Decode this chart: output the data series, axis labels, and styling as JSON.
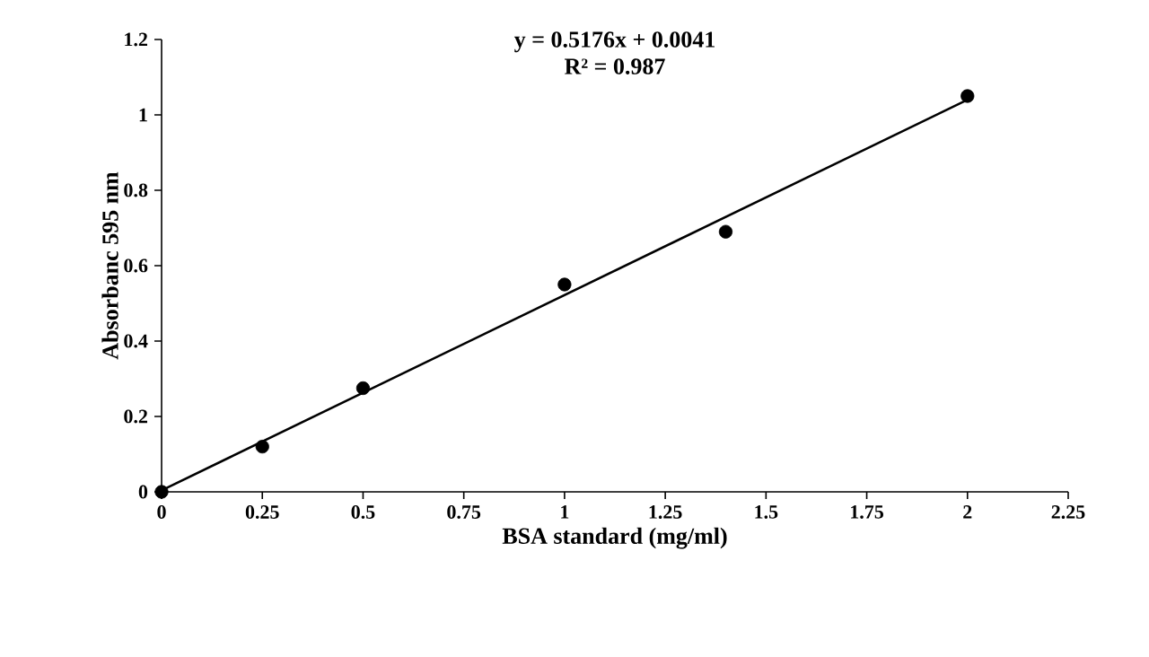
{
  "chart_data": {
    "type": "scatter",
    "xlabel": "BSA standard (mg/ml)",
    "ylabel": "Absorbanc  595 nm",
    "annotations": [
      "y = 0.5176x + 0.0041",
      "R² = 0.987"
    ],
    "series": [
      {
        "type": "scatter",
        "color": "#000000",
        "marker": "circle",
        "x": [
          0,
          0.25,
          0.5,
          1,
          1.4,
          2
        ],
        "values": [
          0,
          0.12,
          0.275,
          0.55,
          0.69,
          1.05
        ]
      },
      {
        "type": "line",
        "color": "#000000",
        "line_style": "solid",
        "x": [
          0,
          2
        ],
        "values": [
          0.004,
          1.04
        ]
      }
    ],
    "xlim": [
      0,
      2.25
    ],
    "ylim": [
      0,
      1.2
    ],
    "xticks": [
      0,
      0.25,
      0.5,
      0.75,
      1,
      1.25,
      1.5,
      1.75,
      2,
      2.25
    ],
    "yticks": [
      0,
      0.2,
      0.4,
      0.6,
      0.8,
      1,
      1.2
    ],
    "grid": false
  }
}
